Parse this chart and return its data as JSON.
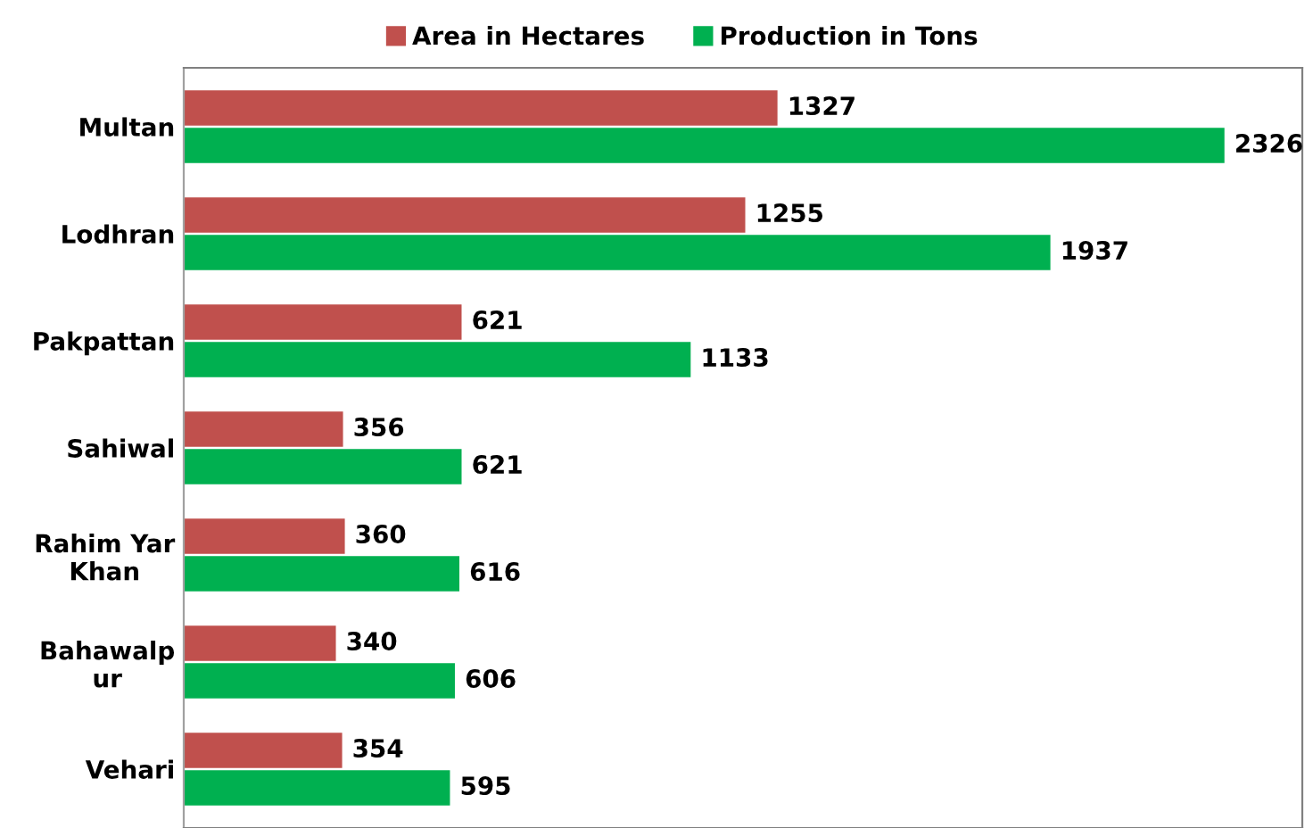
{
  "chart_data": {
    "type": "bar",
    "orientation": "horizontal",
    "categories": [
      "Multan",
      "Lodhran",
      "Pakpattan",
      "Sahiwal",
      "Rahim Yar\nKhan",
      "Bahawalp\nur",
      "Vehari"
    ],
    "series": [
      {
        "name": "Area in Hectares",
        "color": "#c0504d",
        "values": [
          1327,
          1255,
          621,
          356,
          360,
          340,
          354
        ]
      },
      {
        "name": "Production in Tons",
        "color": "#00b050",
        "values": [
          2326,
          1937,
          1133,
          621,
          616,
          606,
          595
        ]
      }
    ],
    "xlim": [
      0,
      2500
    ],
    "data_labels": true,
    "tick_labels": "y",
    "grid": false,
    "legend": "top"
  }
}
